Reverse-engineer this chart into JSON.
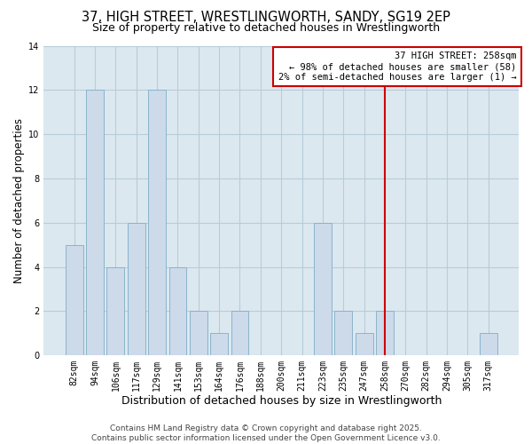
{
  "title_line1": "37, HIGH STREET, WRESTLINGWORTH, SANDY, SG19 2EP",
  "title_line2": "Size of property relative to detached houses in Wrestlingworth",
  "xlabel": "Distribution of detached houses by size in Wrestlingworth",
  "ylabel": "Number of detached properties",
  "bar_labels": [
    "82sqm",
    "94sqm",
    "106sqm",
    "117sqm",
    "129sqm",
    "141sqm",
    "153sqm",
    "164sqm",
    "176sqm",
    "188sqm",
    "200sqm",
    "211sqm",
    "223sqm",
    "235sqm",
    "247sqm",
    "258sqm",
    "270sqm",
    "282sqm",
    "294sqm",
    "305sqm",
    "317sqm"
  ],
  "bar_values": [
    5,
    12,
    4,
    6,
    12,
    4,
    2,
    1,
    2,
    0,
    0,
    0,
    6,
    2,
    1,
    2,
    0,
    0,
    0,
    0,
    1
  ],
  "bar_color": "#ccdaea",
  "bar_edgecolor": "#8ab4cc",
  "reference_line_index": 15,
  "reference_line_color": "#cc0000",
  "ylim": [
    0,
    14
  ],
  "yticks": [
    0,
    2,
    4,
    6,
    8,
    10,
    12,
    14
  ],
  "annotation_title": "37 HIGH STREET: 258sqm",
  "annotation_line1": "← 98% of detached houses are smaller (58)",
  "annotation_line2": "2% of semi-detached houses are larger (1) →",
  "annotation_box_edgecolor": "#cc0000",
  "footer_line1": "Contains HM Land Registry data © Crown copyright and database right 2025.",
  "footer_line2": "Contains public sector information licensed under the Open Government Licence v3.0.",
  "plot_bg_color": "#dce8f0",
  "fig_bg_color": "#ffffff",
  "grid_color": "#b8ccd8",
  "title_fontsize": 10.5,
  "subtitle_fontsize": 9,
  "ylabel_fontsize": 8.5,
  "xlabel_fontsize": 9,
  "tick_fontsize": 7,
  "annotation_fontsize": 7.5,
  "footer_fontsize": 6.5
}
